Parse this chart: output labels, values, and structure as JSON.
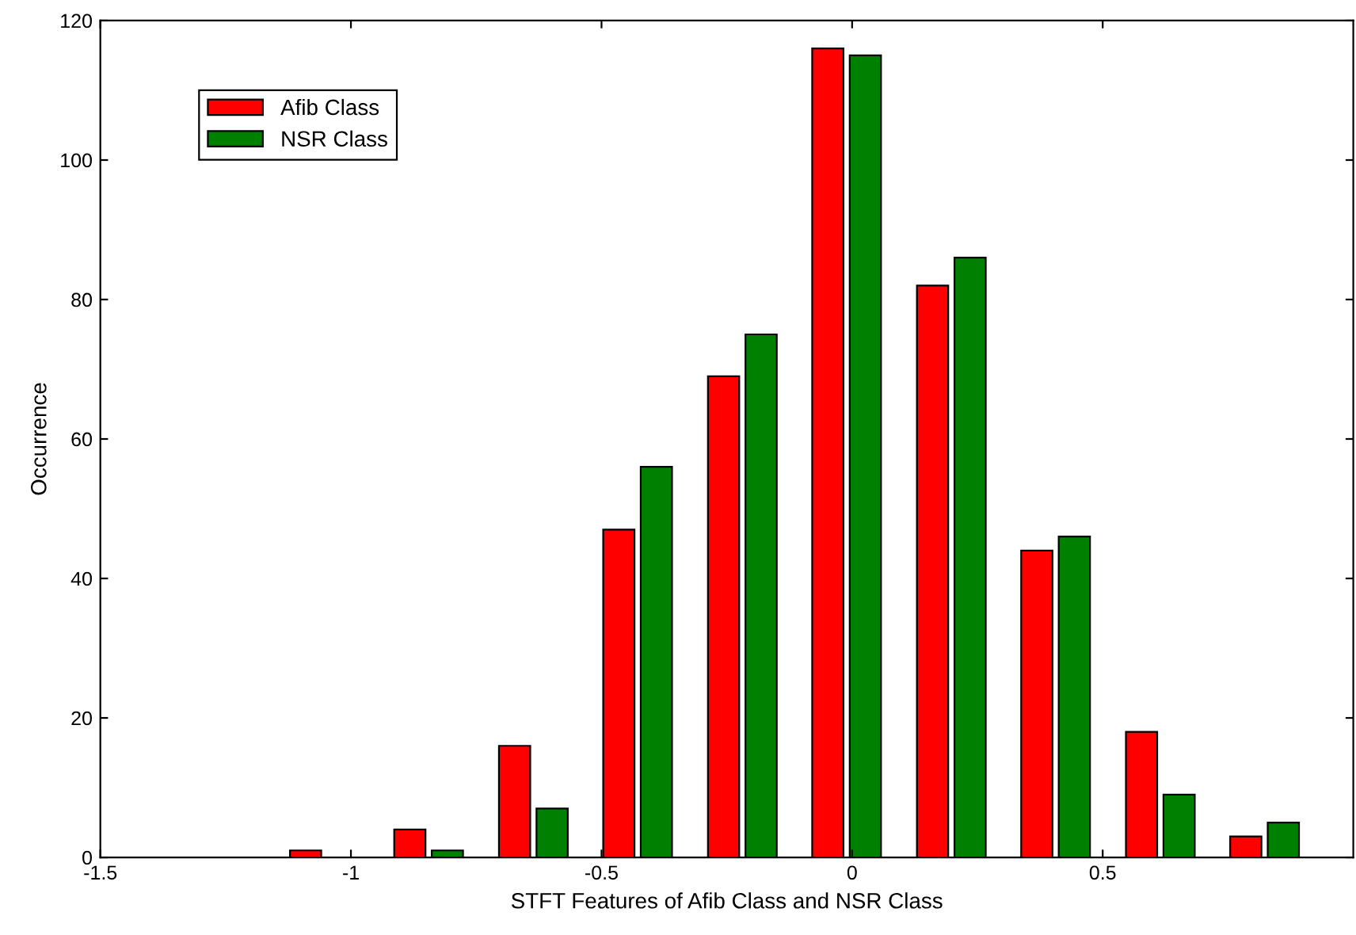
{
  "chart_data": {
    "type": "bar",
    "xlabel": "STFT Features of Afib Class and NSR Class",
    "ylabel": "Occurrence",
    "x": [
      -1.053,
      -0.845,
      -0.636,
      -0.428,
      -0.219,
      -0.011,
      0.198,
      0.406,
      0.615,
      0.823
    ],
    "series": [
      {
        "name": "Afib Class",
        "color": "#ff0000",
        "values": [
          1,
          4,
          16,
          47,
          69,
          116,
          82,
          44,
          18,
          3
        ]
      },
      {
        "name": "NSR Class",
        "color": "#008000",
        "values": [
          null,
          1,
          7,
          56,
          75,
          115,
          86,
          46,
          9,
          5
        ]
      }
    ],
    "xlim": [
      -1.5,
      1.0
    ],
    "xticks": [
      -1.5,
      -1,
      -0.5,
      0,
      0.5
    ],
    "ylim": [
      0,
      120
    ],
    "yticks": [
      0,
      20,
      40,
      60,
      80,
      100,
      120
    ],
    "grid": false,
    "legend": "top left"
  }
}
